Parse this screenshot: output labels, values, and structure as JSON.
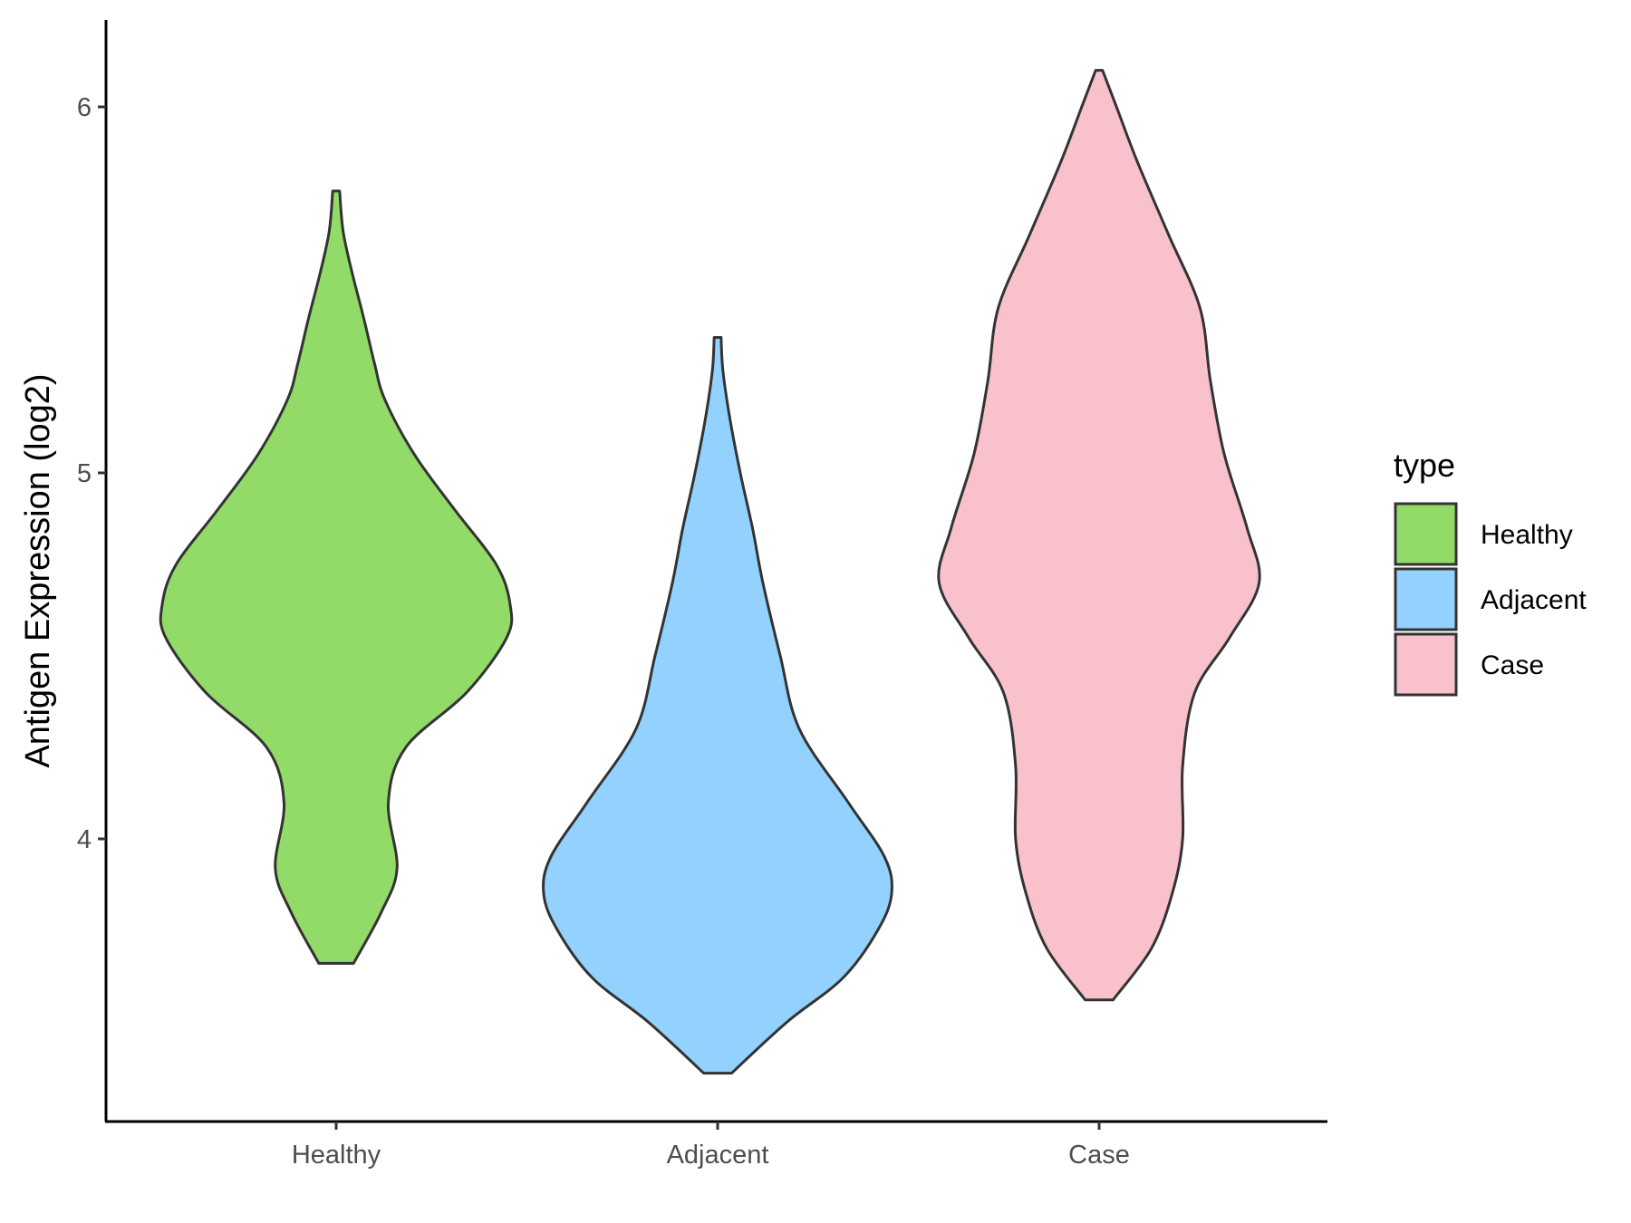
{
  "chart_data": {
    "type": "violin",
    "title": "",
    "xlabel": "",
    "ylabel": "Antigen Expression (log2)",
    "categories": [
      "Healthy",
      "Adjacent",
      "Case"
    ],
    "ylim": [
      3.25,
      6.25
    ],
    "yticks": [
      4,
      5,
      6
    ],
    "grid": false,
    "legend": {
      "title": "type",
      "placement": "right",
      "entries": [
        "Healthy",
        "Adjacent",
        "Case"
      ]
    },
    "colors": {
      "Healthy": "#93db69",
      "Adjacent": "#93d2fe",
      "Case": "#f8c1cc",
      "outline": "#333333"
    },
    "series": [
      {
        "category": "Healthy",
        "min": 3.66,
        "max": 5.77,
        "profile": [
          [
            3.66,
            0.1
          ],
          [
            3.8,
            0.26
          ],
          [
            3.92,
            0.35
          ],
          [
            4.1,
            0.3
          ],
          [
            4.25,
            0.4
          ],
          [
            4.4,
            0.75
          ],
          [
            4.55,
            0.98
          ],
          [
            4.64,
            1.0
          ],
          [
            4.75,
            0.92
          ],
          [
            4.9,
            0.68
          ],
          [
            5.05,
            0.45
          ],
          [
            5.2,
            0.28
          ],
          [
            5.3,
            0.22
          ],
          [
            5.42,
            0.16
          ],
          [
            5.55,
            0.09
          ],
          [
            5.66,
            0.04
          ],
          [
            5.77,
            0.02
          ]
        ]
      },
      {
        "category": "Adjacent",
        "min": 3.36,
        "max": 5.37,
        "profile": [
          [
            3.36,
            0.08
          ],
          [
            3.5,
            0.4
          ],
          [
            3.62,
            0.72
          ],
          [
            3.75,
            0.92
          ],
          [
            3.85,
            1.0
          ],
          [
            3.95,
            0.96
          ],
          [
            4.1,
            0.75
          ],
          [
            4.3,
            0.47
          ],
          [
            4.5,
            0.36
          ],
          [
            4.7,
            0.26
          ],
          [
            4.85,
            0.2
          ],
          [
            5.0,
            0.13
          ],
          [
            5.15,
            0.07
          ],
          [
            5.28,
            0.03
          ],
          [
            5.37,
            0.02
          ]
        ]
      },
      {
        "category": "Case",
        "min": 3.56,
        "max": 6.1,
        "profile": [
          [
            3.56,
            0.08
          ],
          [
            3.7,
            0.3
          ],
          [
            3.85,
            0.42
          ],
          [
            4.0,
            0.48
          ],
          [
            4.2,
            0.48
          ],
          [
            4.4,
            0.55
          ],
          [
            4.55,
            0.75
          ],
          [
            4.7,
            0.92
          ],
          [
            4.85,
            0.85
          ],
          [
            5.05,
            0.72
          ],
          [
            5.25,
            0.64
          ],
          [
            5.45,
            0.58
          ],
          [
            5.65,
            0.4
          ],
          [
            5.85,
            0.22
          ],
          [
            6.0,
            0.1
          ],
          [
            6.1,
            0.02
          ]
        ]
      }
    ]
  }
}
